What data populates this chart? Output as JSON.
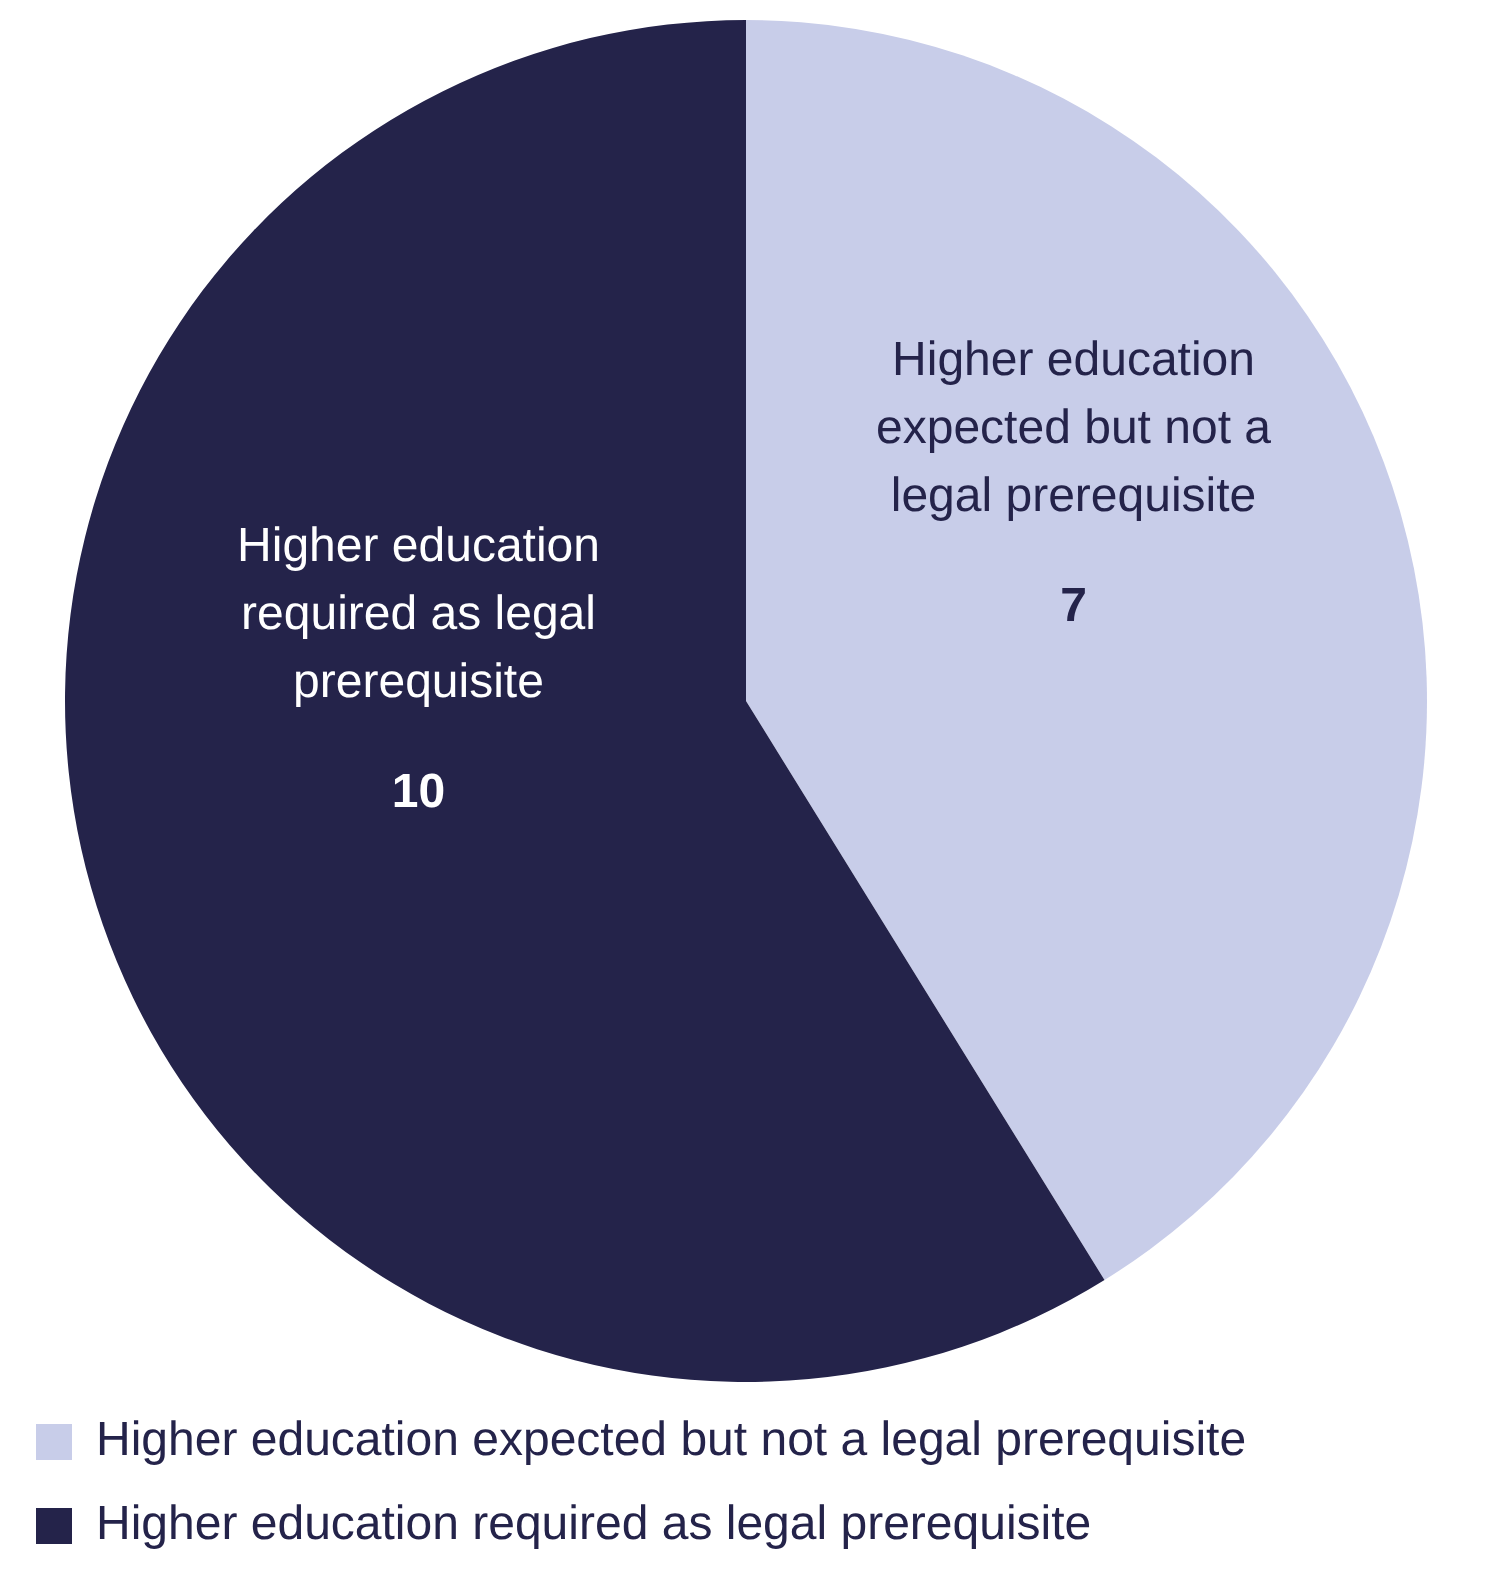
{
  "chart_data": {
    "type": "pie",
    "categories": [
      "Higher education expected but not a legal prerequisite",
      "Higher education required as legal prerequisite"
    ],
    "values": [
      7,
      10
    ],
    "colors": [
      "#c8cde9",
      "#24234a"
    ],
    "data_labels": true,
    "legend": "bottom"
  }
}
